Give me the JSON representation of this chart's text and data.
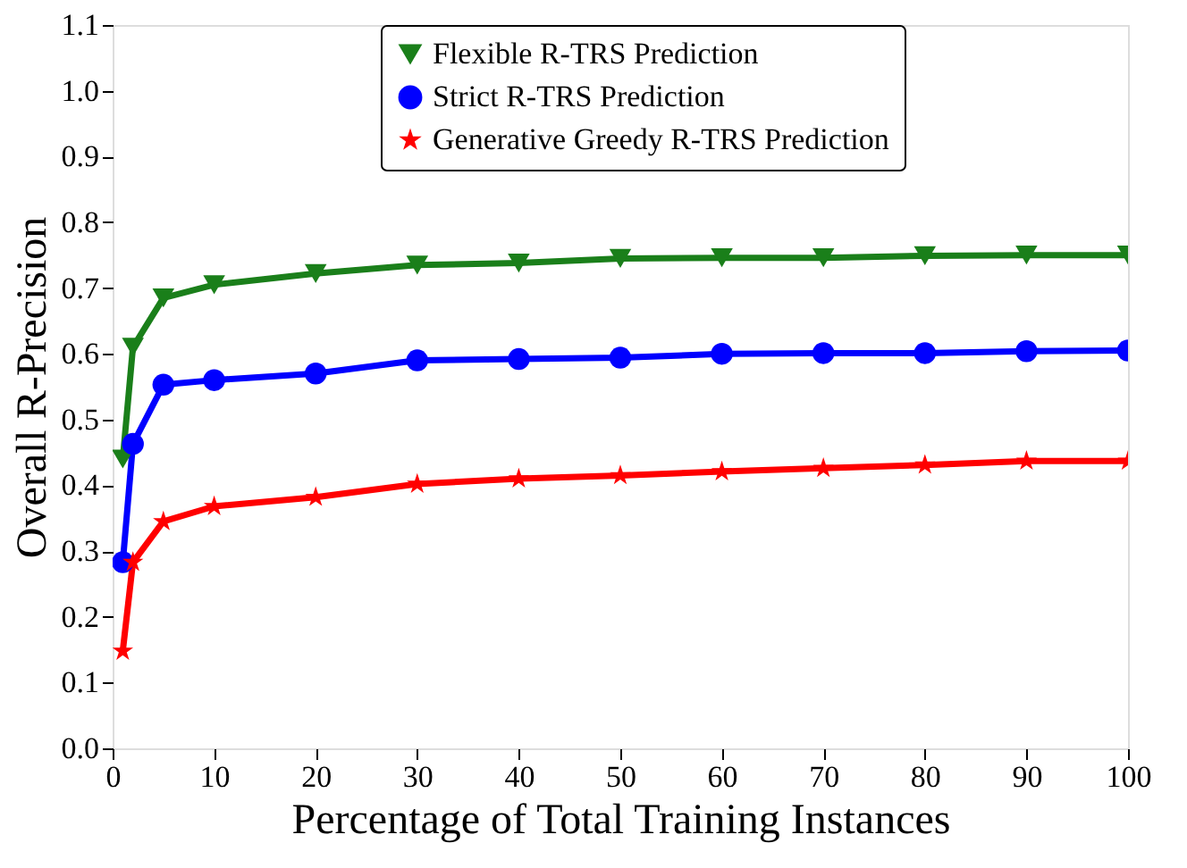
{
  "chart_data": {
    "type": "line",
    "xlabel": "Percentage of Total Training Instances",
    "ylabel": "Overall R-Precision",
    "x": [
      1,
      2,
      5,
      10,
      20,
      30,
      40,
      50,
      60,
      70,
      80,
      90,
      100
    ],
    "series": [
      {
        "name": "Flexible R-TRS Prediction",
        "color": "#1a7f1a",
        "marker": "triangle-down",
        "values": [
          0.44,
          0.61,
          0.685,
          0.705,
          0.722,
          0.735,
          0.738,
          0.745,
          0.746,
          0.746,
          0.749,
          0.75,
          0.75
        ]
      },
      {
        "name": "Strict R-TRS Prediction",
        "color": "#0000ff",
        "marker": "circle",
        "values": [
          0.283,
          0.463,
          0.553,
          0.56,
          0.57,
          0.59,
          0.592,
          0.594,
          0.6,
          0.601,
          0.601,
          0.604,
          0.605
        ]
      },
      {
        "name": "Generative Greedy R-TRS Prediction",
        "color": "#ff0000",
        "marker": "star",
        "values": [
          0.148,
          0.283,
          0.345,
          0.368,
          0.382,
          0.402,
          0.41,
          0.415,
          0.421,
          0.426,
          0.431,
          0.437,
          0.437
        ]
      }
    ],
    "xlim": [
      0,
      100
    ],
    "xticks": [
      0,
      10,
      20,
      30,
      40,
      50,
      60,
      70,
      80,
      90,
      100
    ],
    "ylim": [
      0,
      1.1
    ],
    "yticks": [
      {
        "value": 0,
        "label": "0.0"
      },
      0.1,
      0.2,
      0.3,
      0.4,
      0.5,
      0.6,
      0.7,
      0.8,
      0.9,
      {
        "value": 1,
        "label": "1.0"
      },
      1.1
    ],
    "grid": false,
    "legend": "top",
    "line_style": "solid"
  }
}
